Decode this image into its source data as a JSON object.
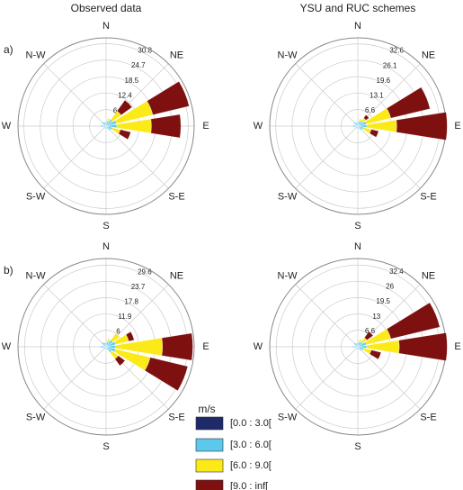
{
  "legend_title": "m/s",
  "chart_data": [
    {
      "type": "rose",
      "title": "Observed data",
      "panel_label": "a)",
      "direction_labels": [
        "N",
        "NE",
        "E",
        "S-E",
        "S",
        "S-W",
        "W",
        "N-W"
      ],
      "rlim": [
        0,
        33
      ],
      "rticks": [
        6.2,
        12.4,
        18.5,
        24.7,
        30.8
      ],
      "x": [
        0,
        22.5,
        45,
        67.5,
        90,
        112.5,
        135,
        157.5,
        180,
        202.5,
        225,
        247.5,
        270,
        292.5,
        315,
        337.5
      ],
      "series": [
        {
          "name": "[0.0 : 3.0[",
          "color": "#1f2a6b",
          "values": [
            0.5,
            0.5,
            0.5,
            0.5,
            0.5,
            0.5,
            0.5,
            0,
            0,
            0,
            0,
            0,
            0.5,
            0,
            0.5,
            0.5
          ]
        },
        {
          "name": "[3.0 : 6.0[",
          "color": "#5bc8ec",
          "values": [
            1,
            1.5,
            2.5,
            3.5,
            3.5,
            2,
            1.5,
            1,
            1,
            1,
            1,
            1,
            1.5,
            1,
            1.5,
            1
          ]
        },
        {
          "name": "[6.0 : 9.0[",
          "color": "#fbea18",
          "values": [
            0,
            1,
            4,
            14,
            13,
            3,
            0,
            0,
            0,
            0,
            0,
            0,
            0,
            0,
            0,
            0
          ]
        },
        {
          "name": "[9.0 : inf[",
          "color": "#7e1010",
          "values": [
            0,
            0,
            5,
            14,
            11,
            4,
            0,
            0,
            0,
            0,
            0,
            0,
            0,
            0,
            0,
            0
          ]
        }
      ]
    },
    {
      "type": "rose",
      "title": "YSU and RUC schemes",
      "direction_labels": [
        "N",
        "NE",
        "E",
        "S-E",
        "S",
        "S-W",
        "W",
        "N-W"
      ],
      "rlim": [
        0,
        35
      ],
      "rticks": [
        6.6,
        13.1,
        19.6,
        26.1,
        32.6
      ],
      "x": [
        0,
        22.5,
        45,
        67.5,
        90,
        112.5,
        135,
        157.5,
        180,
        202.5,
        225,
        247.5,
        270,
        292.5,
        315,
        337.5
      ],
      "series": [
        {
          "name": "[0.0 : 3.0[",
          "color": "#1f2a6b",
          "values": [
            0.5,
            0.5,
            0.5,
            0.5,
            0.5,
            0.5,
            0.5,
            0,
            0,
            0,
            0,
            0,
            0.5,
            0,
            0.5,
            0.5
          ]
        },
        {
          "name": "[3.0 : 6.0[",
          "color": "#5bc8ec",
          "values": [
            1,
            1.5,
            2,
            3,
            3,
            2,
            1.5,
            1,
            1,
            1,
            1,
            1,
            1.5,
            1,
            1.5,
            1
          ]
        },
        {
          "name": "[6.0 : 9.0[",
          "color": "#fbea18",
          "values": [
            0,
            1,
            1.5,
            10,
            12,
            3,
            0,
            0,
            0,
            0,
            0,
            0,
            0,
            0,
            0,
            0
          ]
        },
        {
          "name": "[9.0 : inf[",
          "color": "#7e1010",
          "values": [
            0,
            0,
            1.5,
            16,
            20,
            3,
            0,
            0,
            0,
            0,
            0,
            0,
            0,
            0,
            0,
            0
          ]
        }
      ]
    },
    {
      "type": "rose",
      "panel_label": "b)",
      "direction_labels": [
        "N",
        "NE",
        "E",
        "S-E",
        "S",
        "S-W",
        "W",
        "N-W"
      ],
      "rlim": [
        0,
        32
      ],
      "rticks": [
        6.0,
        11.9,
        17.8,
        23.7,
        29.6
      ],
      "x": [
        0,
        22.5,
        45,
        67.5,
        90,
        112.5,
        135,
        157.5,
        180,
        202.5,
        225,
        247.5,
        270,
        292.5,
        315,
        337.5
      ],
      "series": [
        {
          "name": "[0.0 : 3.0[",
          "color": "#1f2a6b",
          "values": [
            0.5,
            0.5,
            0.5,
            0.5,
            0.5,
            0.5,
            0.5,
            0,
            0,
            0,
            0,
            0,
            0.5,
            0,
            0.5,
            0.5
          ]
        },
        {
          "name": "[3.0 : 6.0[",
          "color": "#5bc8ec",
          "values": [
            1,
            1.5,
            2.5,
            3,
            3,
            3,
            2,
            1,
            1,
            1,
            1,
            1,
            1.5,
            1,
            1.5,
            1
          ]
        },
        {
          "name": "[6.0 : 9.0[",
          "color": "#fbea18",
          "values": [
            0,
            1,
            3,
            5,
            17,
            13,
            3,
            0,
            0,
            0,
            0,
            0,
            0,
            0,
            0,
            0
          ]
        },
        {
          "name": "[9.0 : inf[",
          "color": "#7e1010",
          "values": [
            0,
            0,
            0,
            2,
            11,
            14,
            3,
            0,
            0,
            0,
            0,
            0,
            0,
            0,
            0,
            0
          ]
        }
      ]
    },
    {
      "type": "rose",
      "direction_labels": [
        "N",
        "NE",
        "E",
        "S-E",
        "S",
        "S-W",
        "W",
        "N-W"
      ],
      "rlim": [
        0,
        35
      ],
      "rticks": [
        6.6,
        13.0,
        19.5,
        26.0,
        32.4
      ],
      "x": [
        0,
        22.5,
        45,
        67.5,
        90,
        112.5,
        135,
        157.5,
        180,
        202.5,
        225,
        247.5,
        270,
        292.5,
        315,
        337.5
      ],
      "series": [
        {
          "name": "[0.0 : 3.0[",
          "color": "#1f2a6b",
          "values": [
            0.5,
            0.5,
            0.5,
            0.5,
            0.5,
            0.5,
            0.5,
            0,
            0,
            0,
            0,
            0,
            0.5,
            0,
            0.5,
            0.5
          ]
        },
        {
          "name": "[3.0 : 6.0[",
          "color": "#5bc8ec",
          "values": [
            1,
            1.5,
            2,
            3,
            3,
            2,
            1.5,
            1,
            1,
            1,
            1,
            1,
            1.5,
            1,
            1.5,
            1
          ]
        },
        {
          "name": "[6.0 : 9.0[",
          "color": "#fbea18",
          "values": [
            0,
            1,
            2,
            10,
            13,
            3,
            0,
            0,
            0,
            0,
            0,
            0,
            0,
            0,
            0,
            0
          ]
        },
        {
          "name": "[9.0 : inf[",
          "color": "#7e1010",
          "values": [
            0,
            0,
            3,
            20,
            19,
            4,
            0,
            0,
            0,
            0,
            0,
            0,
            0,
            0,
            0,
            0
          ]
        }
      ]
    }
  ]
}
